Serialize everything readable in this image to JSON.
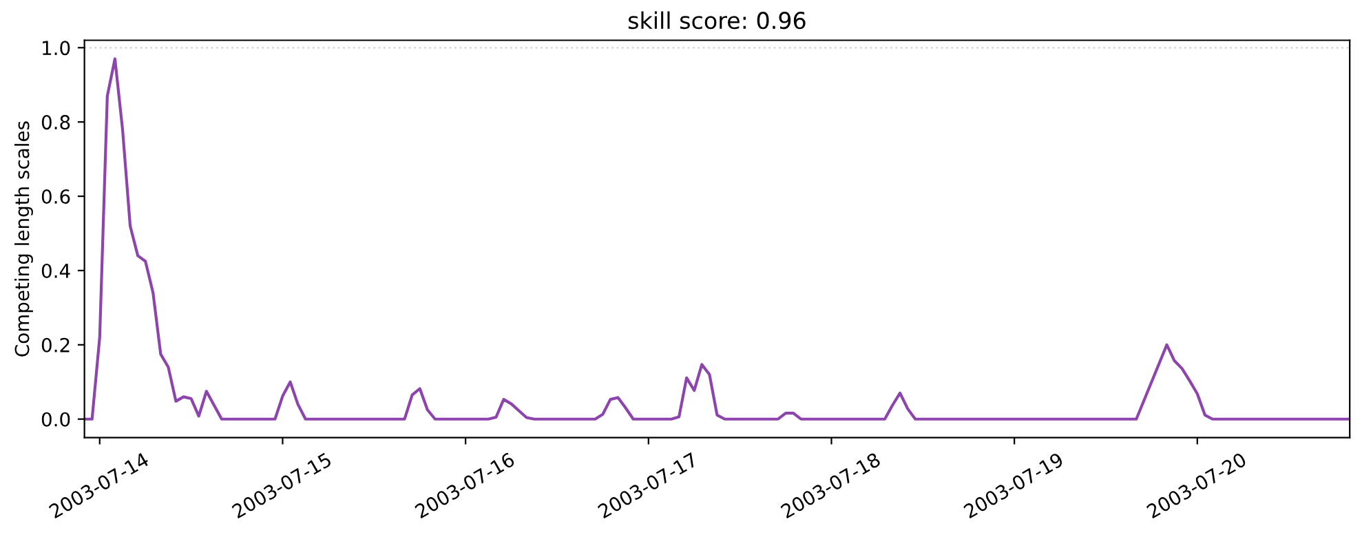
{
  "chart_data": {
    "type": "line",
    "title": "skill score: 0.96",
    "ylabel": "Competing length scales",
    "x": [
      "2003-07-13T22:00",
      "2003-07-13T23:00",
      "2003-07-14T00:00",
      "2003-07-14T01:00",
      "2003-07-14T02:00",
      "2003-07-14T03:00",
      "2003-07-14T04:00",
      "2003-07-14T05:00",
      "2003-07-14T06:00",
      "2003-07-14T07:00",
      "2003-07-14T08:00",
      "2003-07-14T09:00",
      "2003-07-14T10:00",
      "2003-07-14T11:00",
      "2003-07-14T12:00",
      "2003-07-14T13:00",
      "2003-07-14T14:00",
      "2003-07-14T16:00",
      "2003-07-14T23:00",
      "2003-07-15T00:00",
      "2003-07-15T01:00",
      "2003-07-15T02:00",
      "2003-07-15T03:00",
      "2003-07-15T16:00",
      "2003-07-15T17:00",
      "2003-07-15T18:00",
      "2003-07-15T19:00",
      "2003-07-15T20:00",
      "2003-07-16T03:00",
      "2003-07-16T04:00",
      "2003-07-16T05:00",
      "2003-07-16T06:00",
      "2003-07-16T08:00",
      "2003-07-16T09:00",
      "2003-07-16T17:00",
      "2003-07-16T18:00",
      "2003-07-16T19:00",
      "2003-07-16T20:00",
      "2003-07-16T21:00",
      "2003-07-16T22:00",
      "2003-07-17T03:00",
      "2003-07-17T04:00",
      "2003-07-17T05:00",
      "2003-07-17T06:00",
      "2003-07-17T07:00",
      "2003-07-17T08:00",
      "2003-07-17T09:00",
      "2003-07-17T10:00",
      "2003-07-17T17:00",
      "2003-07-17T18:00",
      "2003-07-17T19:00",
      "2003-07-17T20:00",
      "2003-07-18T07:00",
      "2003-07-18T08:00",
      "2003-07-18T09:00",
      "2003-07-18T10:00",
      "2003-07-18T11:00",
      "2003-07-19T16:00",
      "2003-07-19T20:00",
      "2003-07-19T21:00",
      "2003-07-19T22:00",
      "2003-07-19T23:00",
      "2003-07-20T00:00",
      "2003-07-20T01:00",
      "2003-07-20T02:00",
      "2003-07-20T20:00"
    ],
    "series": [
      {
        "color": "#8e44ad",
        "values": [
          0.0,
          0.0,
          0.22,
          0.87,
          0.97,
          0.78,
          0.52,
          0.44,
          0.425,
          0.34,
          0.175,
          0.14,
          0.048,
          0.06,
          0.055,
          0.008,
          0.075,
          0.0,
          0.0,
          0.062,
          0.1,
          0.04,
          0.0,
          0.0,
          0.065,
          0.082,
          0.025,
          0.0,
          0.0,
          0.005,
          0.053,
          0.041,
          0.004,
          0.0,
          0.0,
          0.013,
          0.053,
          0.058,
          0.03,
          0.0,
          0.0,
          0.006,
          0.111,
          0.077,
          0.147,
          0.12,
          0.011,
          0.0,
          0.0,
          0.016,
          0.016,
          0.0,
          0.0,
          0.037,
          0.07,
          0.028,
          0.0,
          0.0,
          0.2,
          0.157,
          0.136,
          0.103,
          0.068,
          0.011,
          0.0,
          0.0
        ]
      }
    ],
    "xlim": [
      "2003-07-13T22:00",
      "2003-07-20T20:00"
    ],
    "xticks": [
      "2003-07-14",
      "2003-07-15",
      "2003-07-16",
      "2003-07-17",
      "2003-07-18",
      "2003-07-19",
      "2003-07-20"
    ],
    "ylim": [
      -0.05,
      1.02
    ],
    "yticks": [
      {
        "value": 0,
        "label": "0.0"
      },
      0.2,
      0.4,
      0.6,
      0.8,
      {
        "value": 1,
        "label": "1.0"
      }
    ],
    "ref_lines": [
      {
        "axis": "y",
        "value": 1.0,
        "color": "#d9d9d9",
        "line_style": "dotted"
      }
    ],
    "grid": false,
    "legend": false
  }
}
